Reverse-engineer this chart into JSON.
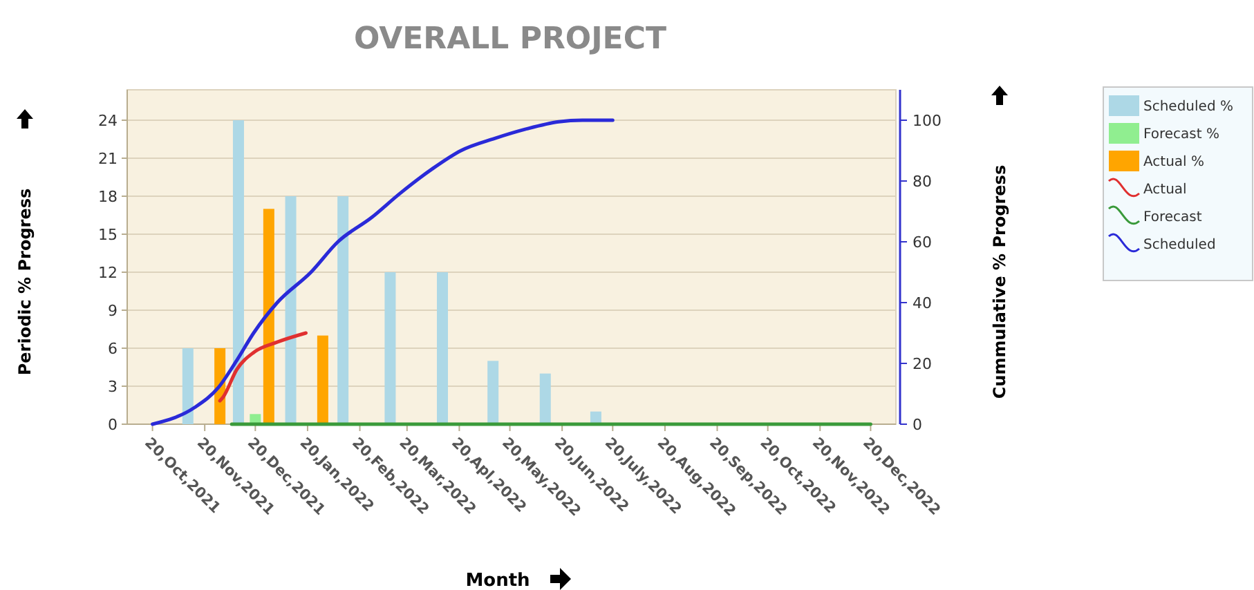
{
  "chart_data": {
    "type": "bar",
    "title": "OVERALL PROJECT",
    "xlabel": "Month",
    "ylabel": "Periodic % Progress",
    "y2label": "Cummulative % Progress",
    "xlim": [
      "2021-10-05",
      "2023-01-04"
    ],
    "xticks": [
      {
        "value": "2021-10-20",
        "label": "20,Oct,2021"
      },
      {
        "value": "2021-11-20",
        "label": "20,Nov,2021"
      },
      {
        "value": "2021-12-20",
        "label": "20,Dec,2021"
      },
      {
        "value": "2022-01-20",
        "label": "20,Jan,2022"
      },
      {
        "value": "2022-02-20",
        "label": "20,Feb,2022"
      },
      {
        "value": "2022-03-20",
        "label": "20,Mar,2022"
      },
      {
        "value": "2022-04-20",
        "label": "20,Apl,2022"
      },
      {
        "value": "2022-05-20",
        "label": "20,May,2022"
      },
      {
        "value": "2022-06-20",
        "label": "20,Jun,2022"
      },
      {
        "value": "2022-07-20",
        "label": "20,July,2022"
      },
      {
        "value": "2022-08-20",
        "label": "20,Aug,2022"
      },
      {
        "value": "2022-09-20",
        "label": "20,Sep,2022"
      },
      {
        "value": "2022-10-20",
        "label": "20,Oct,2022"
      },
      {
        "value": "2022-11-20",
        "label": "20,Nov,2022"
      },
      {
        "value": "2022-12-20",
        "label": "20,Dec,2022"
      }
    ],
    "ylim": [
      0,
      26.4
    ],
    "yticks": [
      0,
      3,
      6,
      9,
      12,
      15,
      18,
      21,
      24
    ],
    "y2lim": [
      0,
      110
    ],
    "y2ticks": [
      0,
      20,
      40,
      60,
      80,
      100
    ],
    "grid": "y",
    "legend": "right",
    "series": [
      {
        "name": "Scheduled %",
        "color": "#add8e6",
        "x": [
          "2021-11-10",
          "2021-12-10",
          "2022-01-10",
          "2022-02-10",
          "2022-03-10",
          "2022-04-10",
          "2022-05-10",
          "2022-06-10",
          "2022-07-10"
        ],
        "values": [
          6,
          24,
          18,
          18,
          12,
          12,
          5,
          4,
          1
        ]
      },
      {
        "name": "Forecast %",
        "color": "#90ee90",
        "x": [
          "2021-12-20"
        ],
        "values": [
          0.8
        ]
      },
      {
        "name": "Actual %",
        "color": "#ffa500",
        "x": [
          "2021-11-29",
          "2021-12-28",
          "2022-01-29"
        ],
        "values": [
          6,
          17,
          7
        ]
      },
      {
        "name": "Actual",
        "type": "line",
        "axis": "y2",
        "color": "#e03030",
        "x": [
          "2021-11-29",
          "2021-12-01",
          "2021-12-09",
          "2021-12-19",
          "2022-01-02",
          "2022-01-19"
        ],
        "values": [
          7.7,
          9,
          18,
          23.6,
          27,
          30
        ]
      },
      {
        "name": "Forecast",
        "type": "line",
        "axis": "y2",
        "color": "#3a9a3a",
        "x": [
          "2021-12-06",
          "2022-03-20",
          "2022-06-20",
          "2022-09-20",
          "2022-12-20"
        ],
        "values": [
          0,
          0,
          0,
          0,
          0
        ]
      },
      {
        "name": "Scheduled",
        "type": "line",
        "axis": "y2",
        "color": "#2a2ad8",
        "x": [
          "2021-10-20",
          "2021-11-14",
          "2021-11-28",
          "2021-12-09",
          "2021-12-19",
          "2022-01-02",
          "2022-01-22",
          "2022-02-07",
          "2022-02-27",
          "2022-03-16",
          "2022-04-04",
          "2022-04-21",
          "2022-05-11",
          "2022-05-29",
          "2022-06-18",
          "2022-07-02",
          "2022-07-20"
        ],
        "values": [
          0,
          5.5,
          12,
          21,
          30,
          40,
          50,
          60,
          68,
          76,
          84,
          90,
          94,
          97,
          99.5,
          100,
          100
        ]
      }
    ]
  }
}
